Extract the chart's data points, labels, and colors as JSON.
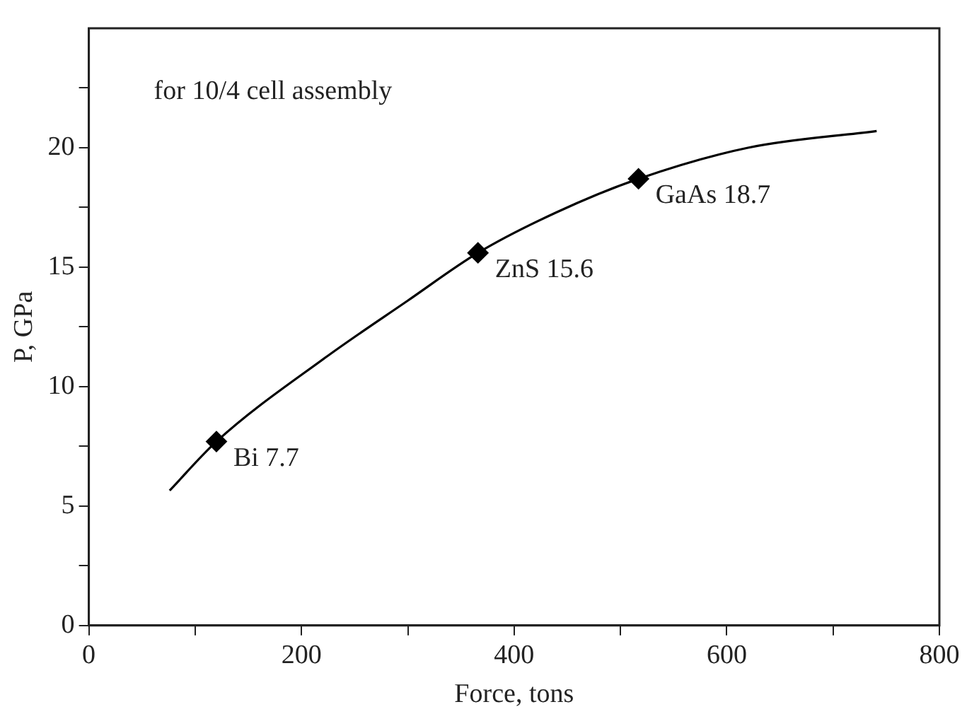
{
  "chart_data": {
    "type": "line",
    "xlabel": "Force, tons",
    "ylabel": "P, GPa",
    "xlim": [
      0,
      800
    ],
    "ylim": [
      0,
      25
    ],
    "xticks": [
      0,
      {
        "value": 100,
        "label": null
      },
      200,
      {
        "value": 300,
        "label": null
      },
      400,
      {
        "value": 500,
        "label": null
      },
      600,
      {
        "value": 700,
        "label": null
      },
      800
    ],
    "yticks": [
      0,
      {
        "value": 2.5,
        "label": null
      },
      5,
      {
        "value": 7.5,
        "label": null
      },
      10,
      {
        "value": 12.5,
        "label": null
      },
      15,
      {
        "value": 17.5,
        "label": null
      },
      20,
      {
        "value": 22.5,
        "label": null
      }
    ],
    "grid": false,
    "legend": false,
    "series": [
      {
        "color": "#000000",
        "marker": "none",
        "line_style": "solid",
        "x": [
          76,
          120,
          222,
          300,
          366,
          440,
          517,
          620,
          741
        ],
        "values": [
          5.65,
          7.7,
          11.2,
          13.6,
          15.6,
          17.3,
          18.7,
          20.0,
          20.7
        ]
      },
      {
        "type": "scatter",
        "color": "#000000",
        "marker": "diamond",
        "x": [
          120,
          366,
          517
        ],
        "values": [
          7.7,
          15.6,
          18.7
        ]
      }
    ],
    "annotations": [
      "for 10/4 cell assembly",
      {
        "text": "Bi 7.7",
        "x": 120,
        "y": 7.7
      },
      {
        "text": "ZnS 15.6",
        "x": 366,
        "y": 15.6
      },
      {
        "text": "GaAs 18.7",
        "x": 517,
        "y": 18.7
      }
    ]
  }
}
